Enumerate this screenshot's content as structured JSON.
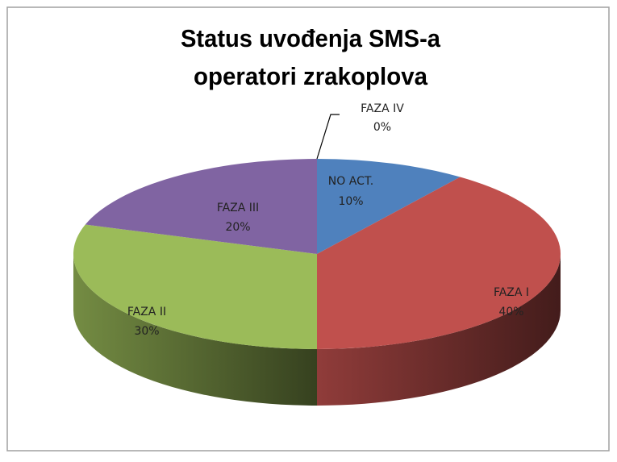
{
  "chart_data": {
    "type": "pie3d",
    "title": [
      "Status uvođenja SMS-a",
      "operatori zrakoplova"
    ],
    "categories": [
      "NO ACT.",
      "FAZA I",
      "FAZA II",
      "FAZA III",
      "FAZA IV"
    ],
    "values": [
      10,
      40,
      30,
      20,
      0
    ],
    "value_labels": [
      "10%",
      "40%",
      "30%",
      "20%",
      "0%"
    ],
    "colors": [
      "#4f81bd",
      "#c0504d",
      "#9bbb59",
      "#8064a2",
      "#4bacc6"
    ]
  }
}
